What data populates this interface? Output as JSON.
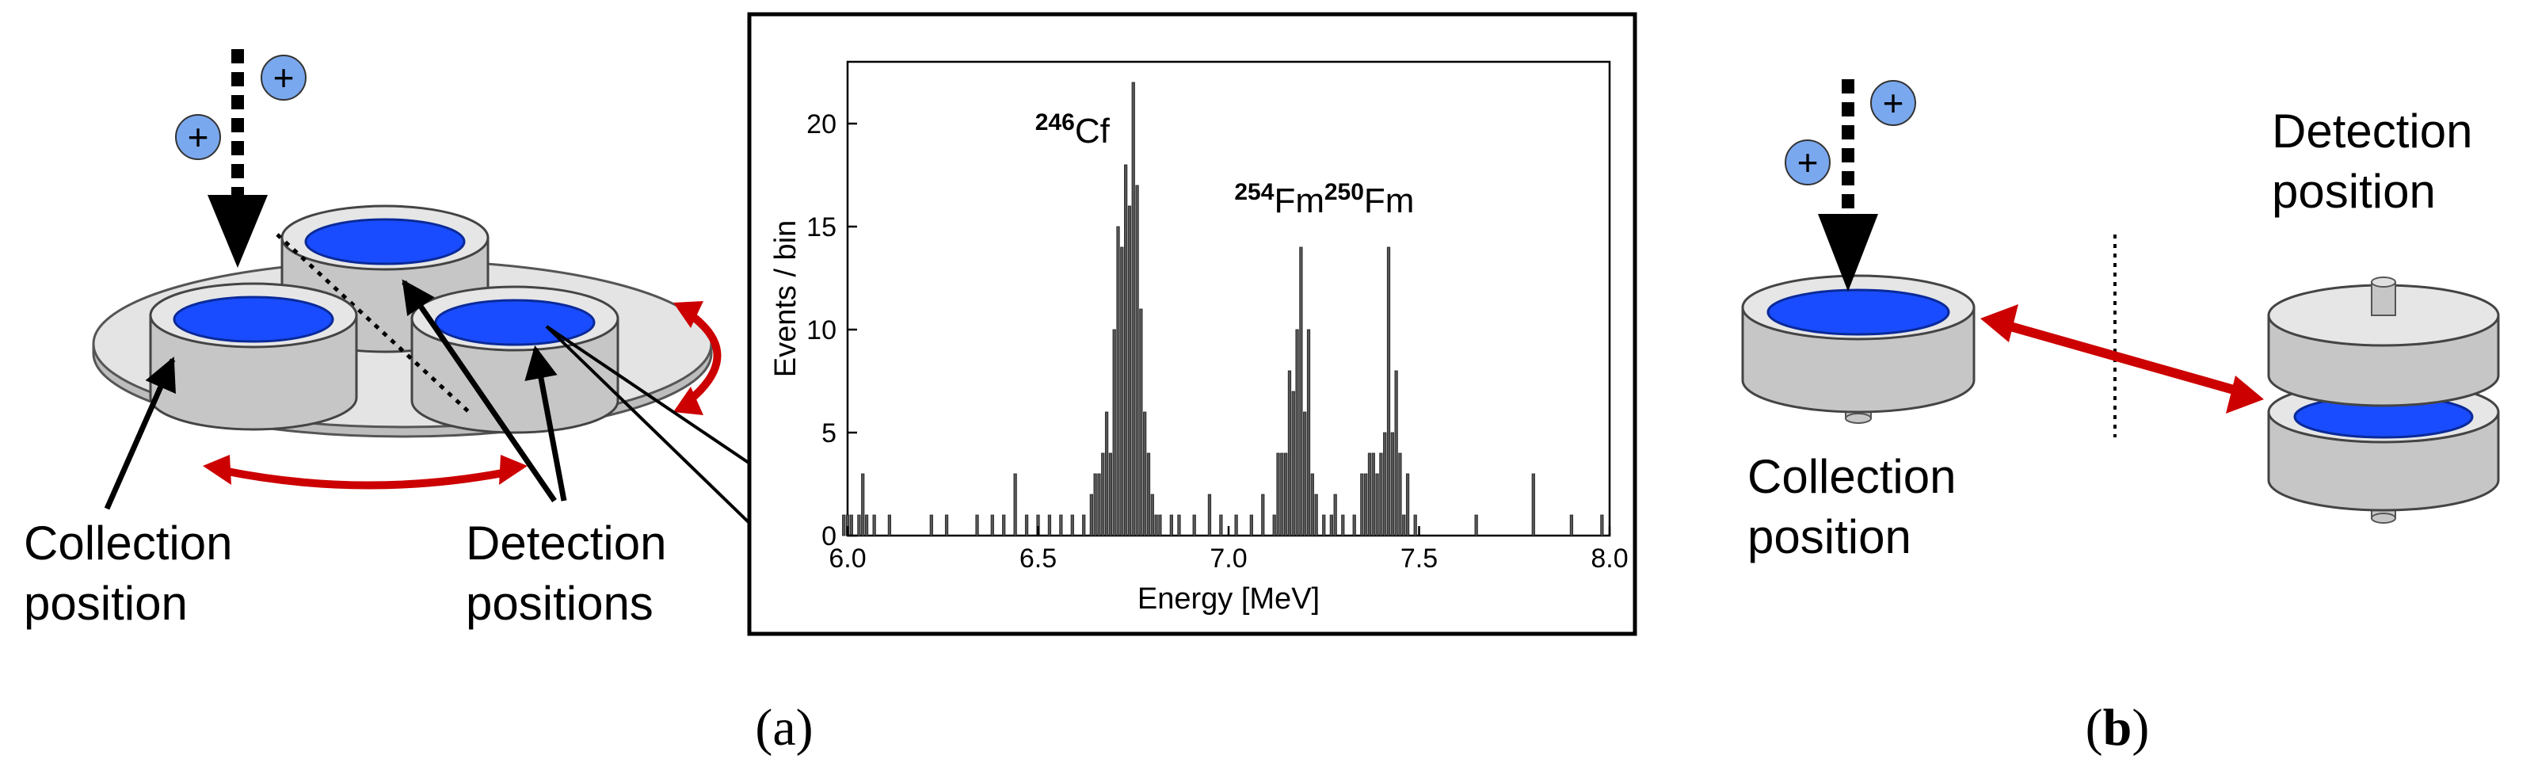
{
  "panel_a": {
    "label_open": "(",
    "label_letter": "a",
    "label_close": ")",
    "collection_label": [
      "Collection",
      "position"
    ],
    "detection_label": [
      "Detection",
      "positions"
    ]
  },
  "panel_b": {
    "label_open": "(",
    "label_letter": "b",
    "label_close": ")",
    "detection_label": [
      "Detection",
      "position"
    ],
    "collection_label": [
      "Collection",
      "position"
    ]
  },
  "colors": {
    "arrow_red": "#cc0000",
    "foil_blue": "#1a4cff",
    "ion_blue": "#7aa8ee",
    "cylinder_grey": "#c8c8c8",
    "plate_grey": "#e4e4e4"
  },
  "chart_data": {
    "type": "bar",
    "xlabel": "Energy [MeV]",
    "ylabel": "Events / bin",
    "xlim": [
      6.0,
      8.0
    ],
    "ylim": [
      0,
      23
    ],
    "xticks": [
      "6.0",
      "6.5",
      "7.0",
      "7.5",
      "8.0"
    ],
    "yticks": [
      "0",
      "5",
      "10",
      "15",
      "20"
    ],
    "bin_width": 0.01,
    "peak_labels": [
      {
        "mass": "246",
        "element": "Cf",
        "energy": 6.75
      },
      {
        "mass": "254",
        "element": "Fm",
        "energy": 7.19
      },
      {
        "mass": "250",
        "element": "Fm",
        "energy": 7.43
      }
    ],
    "bins": [
      [
        5.99,
        1
      ],
      [
        6.0,
        1
      ],
      [
        6.01,
        1
      ],
      [
        6.03,
        1
      ],
      [
        6.04,
        3
      ],
      [
        6.05,
        1
      ],
      [
        6.07,
        1
      ],
      [
        6.11,
        1
      ],
      [
        6.22,
        1
      ],
      [
        6.26,
        1
      ],
      [
        6.34,
        1
      ],
      [
        6.38,
        1
      ],
      [
        6.41,
        1
      ],
      [
        6.44,
        3
      ],
      [
        6.47,
        1
      ],
      [
        6.5,
        1
      ],
      [
        6.53,
        1
      ],
      [
        6.56,
        1
      ],
      [
        6.59,
        1
      ],
      [
        6.62,
        1
      ],
      [
        6.64,
        2
      ],
      [
        6.65,
        3
      ],
      [
        6.66,
        3
      ],
      [
        6.67,
        4
      ],
      [
        6.68,
        6
      ],
      [
        6.69,
        4
      ],
      [
        6.7,
        10
      ],
      [
        6.71,
        15
      ],
      [
        6.72,
        14
      ],
      [
        6.73,
        18
      ],
      [
        6.74,
        16
      ],
      [
        6.75,
        22
      ],
      [
        6.76,
        17
      ],
      [
        6.77,
        11
      ],
      [
        6.78,
        6
      ],
      [
        6.79,
        4
      ],
      [
        6.8,
        2
      ],
      [
        6.81,
        1
      ],
      [
        6.82,
        1
      ],
      [
        6.85,
        1
      ],
      [
        6.87,
        1
      ],
      [
        6.91,
        1
      ],
      [
        6.95,
        2
      ],
      [
        6.98,
        1
      ],
      [
        7.02,
        1
      ],
      [
        7.06,
        1
      ],
      [
        7.09,
        2
      ],
      [
        7.12,
        1
      ],
      [
        7.13,
        4
      ],
      [
        7.14,
        4
      ],
      [
        7.15,
        4
      ],
      [
        7.16,
        8
      ],
      [
        7.17,
        7
      ],
      [
        7.18,
        10
      ],
      [
        7.19,
        14
      ],
      [
        7.2,
        6
      ],
      [
        7.21,
        10
      ],
      [
        7.22,
        3
      ],
      [
        7.23,
        2
      ],
      [
        7.25,
        1
      ],
      [
        7.27,
        1
      ],
      [
        7.28,
        2
      ],
      [
        7.3,
        1
      ],
      [
        7.33,
        1
      ],
      [
        7.35,
        3
      ],
      [
        7.36,
        3
      ],
      [
        7.37,
        4
      ],
      [
        7.38,
        4
      ],
      [
        7.39,
        3
      ],
      [
        7.4,
        4
      ],
      [
        7.41,
        5
      ],
      [
        7.42,
        14
      ],
      [
        7.43,
        5
      ],
      [
        7.44,
        8
      ],
      [
        7.45,
        4
      ],
      [
        7.46,
        1
      ],
      [
        7.47,
        3
      ],
      [
        7.49,
        1
      ],
      [
        7.65,
        1
      ],
      [
        7.8,
        3
      ],
      [
        7.9,
        1
      ],
      [
        7.98,
        1
      ]
    ]
  }
}
